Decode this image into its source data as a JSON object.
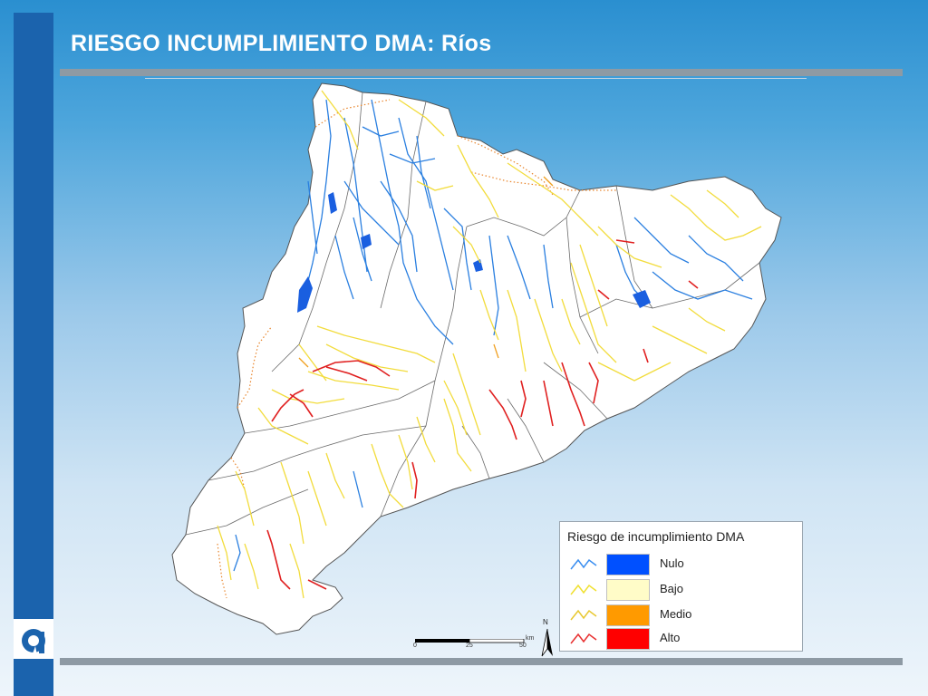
{
  "slide": {
    "title": "RIESGO INCUMPLIMIENTO DMA: Ríos"
  },
  "legend": {
    "title": "Riesgo de incumplimiento DMA",
    "items": [
      {
        "label": "Nulo",
        "line_color": "#3a8ef0",
        "fill_color": "#0050ff"
      },
      {
        "label": "Bajo",
        "line_color": "#f0e030",
        "fill_color": "#fffcc8"
      },
      {
        "label": "Medio",
        "line_color": "#e8c830",
        "fill_color": "#ff9a00"
      },
      {
        "label": "Alto",
        "line_color": "#e83030",
        "fill_color": "#ff0000"
      }
    ]
  },
  "scale": {
    "ticks": [
      "0",
      "25",
      "50"
    ],
    "unit": "km"
  },
  "north_arrow": {
    "label": "N"
  },
  "colors": {
    "accent_bar": "#1b63ad",
    "rule": "#8e9aa4",
    "map_land": "#ffffff",
    "river_nulo": "#2a7fe0",
    "river_bajo": "#f2dc3c",
    "river_medio": "#f0a020",
    "river_alto": "#e02020"
  }
}
